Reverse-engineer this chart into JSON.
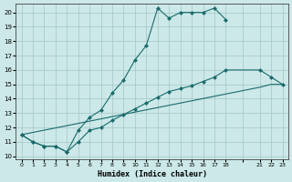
{
  "xlabel": "Humidex (Indice chaleur)",
  "bg_color": "#cce8e8",
  "grid_color": "#aacccc",
  "line_color": "#1a6b6b",
  "xlim": [
    -0.5,
    23.5
  ],
  "ylim": [
    9.8,
    20.6
  ],
  "xtick_labels": [
    "0",
    "1",
    "2",
    "3",
    "4",
    "5",
    "6",
    "7",
    "8",
    "9",
    "10",
    "11",
    "12",
    "13",
    "14",
    "15",
    "16",
    "17",
    "18",
    "",
    "21",
    "22",
    "23"
  ],
  "xtick_positions": [
    0,
    1,
    2,
    3,
    4,
    5,
    6,
    7,
    8,
    9,
    10,
    11,
    12,
    13,
    14,
    15,
    16,
    17,
    18,
    19.5,
    21,
    22,
    23
  ],
  "yticks": [
    10,
    11,
    12,
    13,
    14,
    15,
    16,
    17,
    18,
    19,
    20
  ],
  "line1_x": [
    0,
    1,
    2,
    3,
    4,
    5,
    6,
    7,
    8,
    9,
    10,
    11,
    12,
    13,
    14,
    15,
    16,
    17,
    18
  ],
  "line1_y": [
    11.5,
    11.0,
    10.7,
    10.7,
    10.3,
    11.8,
    12.7,
    13.2,
    14.4,
    15.3,
    16.7,
    17.7,
    20.3,
    19.6,
    20.0,
    20.0,
    20.0,
    20.3,
    19.5
  ],
  "line2_x": [
    0,
    1,
    2,
    3,
    4,
    5,
    6,
    7,
    8,
    9,
    10,
    11,
    12,
    13,
    14,
    15,
    16,
    17,
    18,
    21,
    22,
    23
  ],
  "line2_y": [
    11.5,
    11.0,
    10.7,
    10.7,
    10.3,
    11.0,
    11.8,
    12.0,
    12.5,
    12.9,
    13.3,
    13.7,
    14.1,
    14.5,
    14.7,
    14.9,
    15.2,
    15.5,
    16.0,
    16.0,
    15.5,
    15.0
  ],
  "line3_x": [
    0,
    21,
    22,
    23
  ],
  "line3_y": [
    11.5,
    14.8,
    15.0,
    15.0
  ],
  "markersize": 2.5,
  "linewidth": 0.8
}
